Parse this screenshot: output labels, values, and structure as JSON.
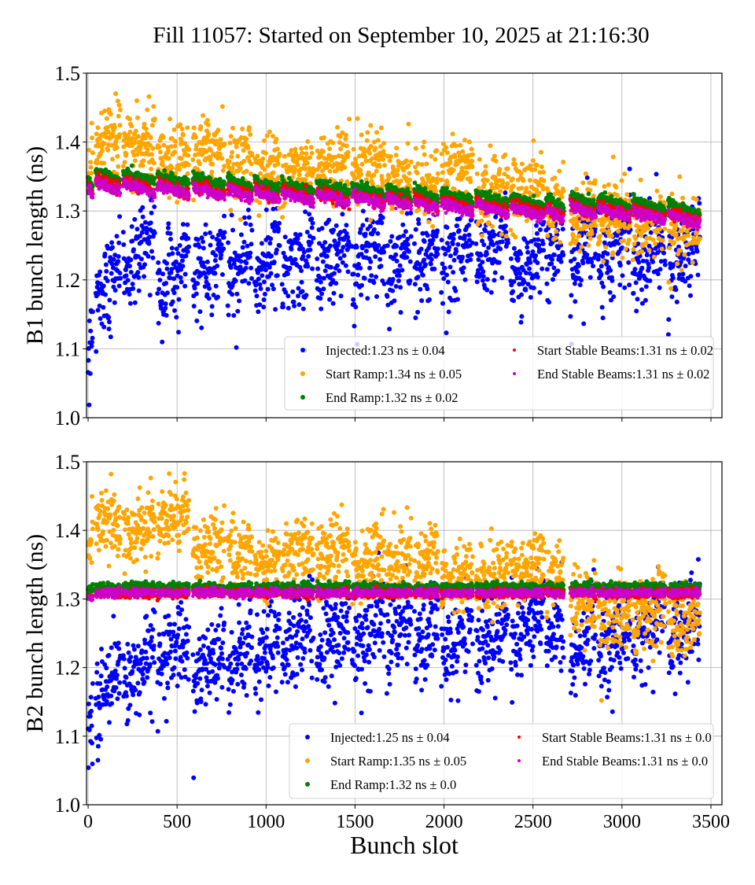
{
  "title": "Fill 11057: Started on September 10, 2025 at 21:16:30",
  "chart_data": [
    {
      "type": "scatter",
      "ylabel": "B1 bunch length (ns)",
      "xlabel": "",
      "xlim": [
        -9,
        3562
      ],
      "ylim": [
        1.0,
        1.5
      ],
      "xticks": [
        0,
        500,
        1000,
        1500,
        2000,
        2500,
        3000,
        3500
      ],
      "xtick_labels_shown": false,
      "yticks": [
        "1.0",
        "1.1",
        "1.2",
        "1.3",
        "1.4",
        "1.5"
      ],
      "grid": true,
      "legend_position": "lower-right",
      "trains": [
        [
          0,
          27
        ],
        [
          43,
          182
        ],
        [
          198,
          375
        ],
        [
          390,
          567
        ],
        [
          589,
          767
        ],
        [
          785,
          921
        ],
        [
          936,
          1077
        ],
        [
          1090,
          1267
        ],
        [
          1285,
          1467
        ],
        [
          1484,
          1666
        ],
        [
          1679,
          1816
        ],
        [
          1834,
          1967
        ],
        [
          1985,
          2162
        ],
        [
          2180,
          2361
        ],
        [
          2375,
          2561
        ],
        [
          2574,
          2672
        ],
        [
          2711,
          2853
        ],
        [
          2867,
          3048
        ],
        [
          3061,
          3243
        ],
        [
          3261,
          3438
        ]
      ],
      "series": [
        {
          "name": "Injected:1.23 ns ± 0.04",
          "color": "#0000ff",
          "spread": 0.03,
          "within_train_trend": 0.05,
          "train_means": [
            1.12,
            1.2,
            1.24,
            1.21,
            1.22,
            1.23,
            1.23,
            1.23,
            1.24,
            1.24,
            1.23,
            1.24,
            1.25,
            1.25,
            1.23,
            1.25,
            1.24,
            1.25,
            1.24,
            1.24
          ]
        },
        {
          "name": "Start Ramp:1.34 ns ± 0.05",
          "color": "#ffa500",
          "spread": 0.025,
          "within_train_trend": 0.02,
          "train_means": [
            1.37,
            1.41,
            1.39,
            1.37,
            1.39,
            1.37,
            1.36,
            1.36,
            1.37,
            1.37,
            1.35,
            1.34,
            1.36,
            1.33,
            1.33,
            1.31,
            1.29,
            1.29,
            1.28,
            1.27
          ]
        },
        {
          "name": "End Ramp:1.32 ns ± 0.02",
          "color": "#008000",
          "spread": 0.004,
          "within_train_trend": -0.015,
          "train_means": [
            1.34,
            1.35,
            1.348,
            1.345,
            1.343,
            1.34,
            1.337,
            1.335,
            1.333,
            1.33,
            1.327,
            1.324,
            1.32,
            1.318,
            1.314,
            1.31,
            1.315,
            1.312,
            1.308,
            1.303
          ]
        },
        {
          "name": "Start Stable Beams:1.31 ns ± 0.02",
          "color": "#ff0000",
          "spread": 0.004,
          "within_train_trend": -0.015,
          "train_means": [
            1.33,
            1.338,
            1.336,
            1.333,
            1.331,
            1.328,
            1.325,
            1.323,
            1.321,
            1.318,
            1.315,
            1.312,
            1.308,
            1.306,
            1.302,
            1.298,
            1.303,
            1.3,
            1.296,
            1.291
          ]
        },
        {
          "name": "End Stable Beams:1.31 ns ± 0.02",
          "color": "#cc00cc",
          "spread": 0.004,
          "within_train_trend": -0.015,
          "train_means": [
            1.328,
            1.335,
            1.333,
            1.33,
            1.328,
            1.325,
            1.322,
            1.32,
            1.318,
            1.315,
            1.312,
            1.309,
            1.305,
            1.303,
            1.299,
            1.295,
            1.3,
            1.297,
            1.293,
            1.288
          ]
        }
      ]
    },
    {
      "type": "scatter",
      "ylabel": "B2 bunch length (ns)",
      "xlabel": "Bunch slot",
      "xlim": [
        -9,
        3562
      ],
      "ylim": [
        1.0,
        1.5
      ],
      "xticks": [
        0,
        500,
        1000,
        1500,
        2000,
        2500,
        3000,
        3500
      ],
      "xtick_labels": [
        "0",
        "500",
        "1000",
        "1500",
        "2000",
        "2500",
        "3000",
        "3500"
      ],
      "yticks": [
        "1.0",
        "1.1",
        "1.2",
        "1.3",
        "1.4",
        "1.5"
      ],
      "grid": true,
      "legend_position": "lower-right",
      "trains": [
        [
          0,
          27
        ],
        [
          43,
          182
        ],
        [
          198,
          375
        ],
        [
          390,
          567
        ],
        [
          589,
          767
        ],
        [
          785,
          921
        ],
        [
          936,
          1077
        ],
        [
          1090,
          1267
        ],
        [
          1285,
          1467
        ],
        [
          1484,
          1666
        ],
        [
          1679,
          1816
        ],
        [
          1834,
          1967
        ],
        [
          1985,
          2162
        ],
        [
          2180,
          2361
        ],
        [
          2375,
          2561
        ],
        [
          2574,
          2672
        ],
        [
          2711,
          2853
        ],
        [
          2867,
          3048
        ],
        [
          3061,
          3243
        ],
        [
          3261,
          3438
        ]
      ],
      "series": [
        {
          "name": "Injected:1.25 ns ± 0.04",
          "color": "#0000ff",
          "spread": 0.03,
          "within_train_trend": 0.06,
          "train_means": [
            1.12,
            1.18,
            1.21,
            1.23,
            1.21,
            1.22,
            1.23,
            1.25,
            1.25,
            1.25,
            1.26,
            1.25,
            1.25,
            1.25,
            1.26,
            1.26,
            1.24,
            1.24,
            1.26,
            1.26
          ]
        },
        {
          "name": "Start Ramp:1.35 ns ± 0.05",
          "color": "#ffa500",
          "spread": 0.025,
          "within_train_trend": 0.02,
          "train_means": [
            1.38,
            1.41,
            1.4,
            1.42,
            1.37,
            1.37,
            1.35,
            1.37,
            1.37,
            1.36,
            1.36,
            1.36,
            1.33,
            1.33,
            1.35,
            1.33,
            1.29,
            1.28,
            1.28,
            1.27
          ]
        },
        {
          "name": "End Ramp:1.32 ns ± 0.0",
          "color": "#008000",
          "spread": 0.003,
          "within_train_trend": 0.0,
          "train_means": [
            1.316,
            1.317,
            1.318,
            1.318,
            1.317,
            1.317,
            1.317,
            1.317,
            1.318,
            1.318,
            1.317,
            1.317,
            1.318,
            1.317,
            1.318,
            1.317,
            1.317,
            1.317,
            1.318,
            1.318
          ]
        },
        {
          "name": "Start Stable Beams:1.31 ns ± 0.0",
          "color": "#ff0000",
          "spread": 0.003,
          "within_train_trend": 0.0,
          "train_means": [
            1.303,
            1.308,
            1.308,
            1.308,
            1.308,
            1.308,
            1.308,
            1.308,
            1.308,
            1.308,
            1.308,
            1.308,
            1.308,
            1.308,
            1.308,
            1.308,
            1.308,
            1.308,
            1.308,
            1.308
          ]
        },
        {
          "name": "End Stable Beams:1.31 ns ± 0.0",
          "color": "#cc00cc",
          "spread": 0.003,
          "within_train_trend": 0.0,
          "train_means": [
            1.302,
            1.309,
            1.309,
            1.309,
            1.309,
            1.309,
            1.309,
            1.309,
            1.309,
            1.309,
            1.309,
            1.309,
            1.309,
            1.309,
            1.309,
            1.309,
            1.309,
            1.309,
            1.309,
            1.309
          ]
        }
      ]
    }
  ]
}
